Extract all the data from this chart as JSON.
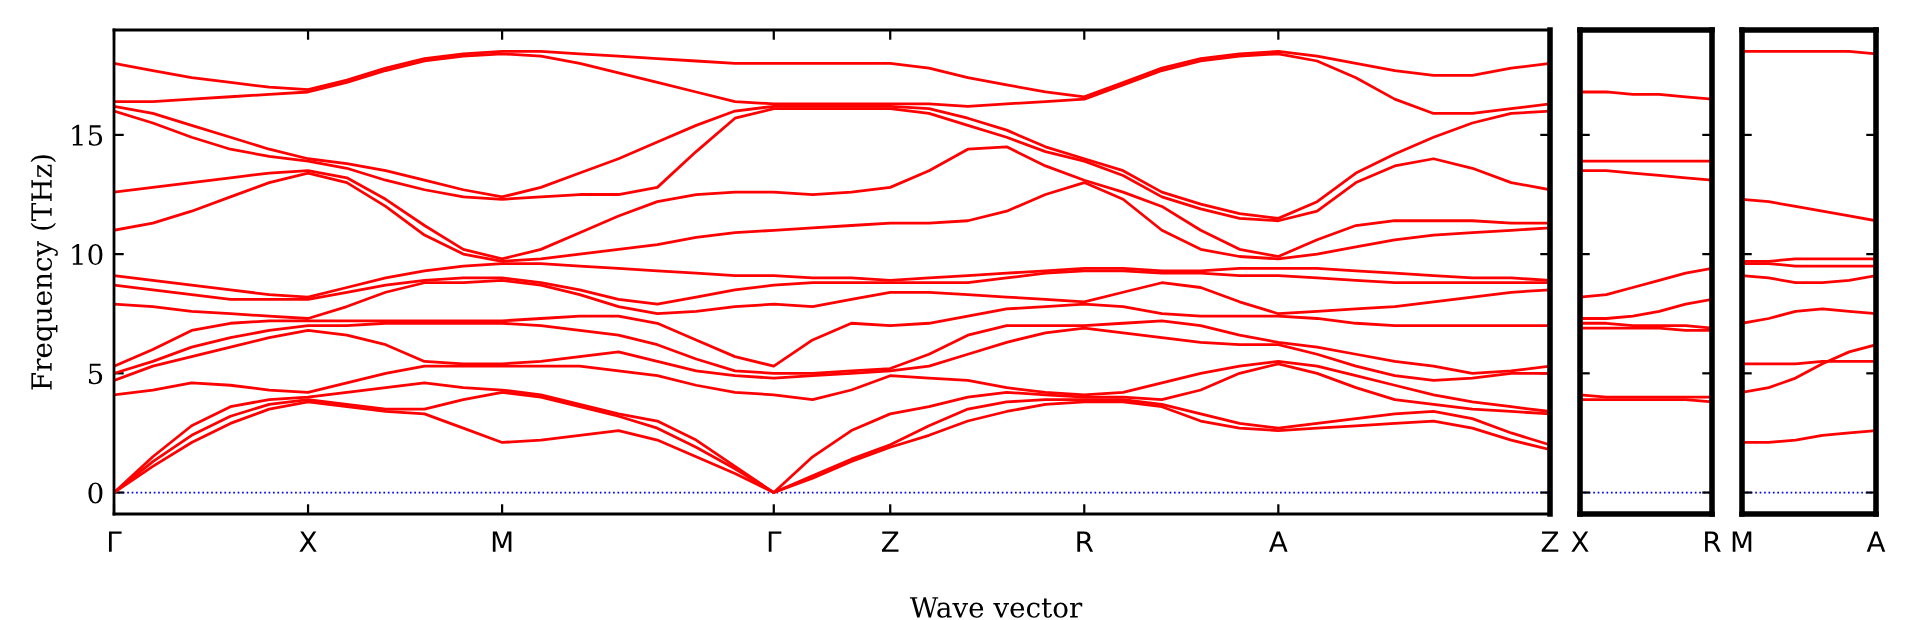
{
  "chart_data": [
    {
      "type": "line",
      "ylabel": "Frequency (THz)",
      "xlabel": "Wave vector",
      "tick_labels": "xy",
      "marker": "none",
      "line_style": "solid",
      "categories": [
        "Γ",
        null,
        null,
        null,
        null,
        "X",
        null,
        null,
        null,
        null,
        "M",
        null,
        null,
        null,
        null,
        null,
        null,
        "Γ",
        null,
        null,
        "Z",
        null,
        null,
        null,
        null,
        "R",
        null,
        null,
        null,
        null,
        "A",
        null,
        null,
        null,
        null,
        null,
        null,
        "Z"
      ],
      "ylim": [
        -0.9,
        19.4
      ],
      "yticks": [
        0,
        5,
        10,
        15
      ],
      "ref_lines": [
        {
          "axis": "y",
          "value": 0,
          "color": "#0000ff",
          "line_style": "dotted"
        }
      ],
      "series": [
        {
          "color": "#ff0000",
          "values": [
            0,
            1.1,
            2.1,
            2.9,
            3.5,
            3.8,
            3.6,
            3.4,
            3.3,
            2.7,
            2.1,
            2.2,
            2.4,
            2.6,
            2.2,
            1.5,
            0.8,
            0,
            0.6,
            1.3,
            1.9,
            2.4,
            3.0,
            3.4,
            3.7,
            3.8,
            3.8,
            3.6,
            3.0,
            2.7,
            2.6,
            2.7,
            2.8,
            2.9,
            3.0,
            2.7,
            2.2,
            1.8
          ]
        },
        {
          "color": "#ff0000",
          "values": [
            0,
            1.3,
            2.4,
            3.2,
            3.7,
            3.9,
            3.7,
            3.5,
            3.5,
            3.9,
            4.2,
            4.0,
            3.6,
            3.2,
            2.7,
            1.9,
            1.0,
            0,
            0.7,
            1.4,
            2.0,
            2.8,
            3.5,
            3.8,
            3.9,
            3.9,
            3.9,
            3.7,
            3.3,
            2.9,
            2.7,
            2.9,
            3.1,
            3.3,
            3.4,
            3.1,
            2.5,
            2.0
          ]
        },
        {
          "color": "#ff0000",
          "values": [
            0,
            1.5,
            2.8,
            3.6,
            3.9,
            4.0,
            4.2,
            4.4,
            4.6,
            4.4,
            4.3,
            4.1,
            3.7,
            3.3,
            3.0,
            2.2,
            1.1,
            0,
            1.5,
            2.6,
            3.3,
            3.6,
            4.0,
            4.2,
            4.1,
            4.0,
            4.0,
            3.9,
            4.3,
            5.0,
            5.4,
            5.0,
            4.4,
            3.9,
            3.7,
            3.5,
            3.4,
            3.3
          ]
        },
        {
          "color": "#ff0000",
          "values": [
            4.1,
            4.3,
            4.6,
            4.5,
            4.3,
            4.2,
            4.6,
            5.0,
            5.3,
            5.3,
            5.3,
            5.3,
            5.3,
            5.1,
            4.9,
            4.5,
            4.2,
            4.1,
            3.9,
            4.3,
            4.9,
            4.8,
            4.7,
            4.4,
            4.2,
            4.1,
            4.2,
            4.6,
            5.0,
            5.3,
            5.5,
            5.3,
            4.9,
            4.5,
            4.1,
            3.8,
            3.6,
            3.4
          ]
        },
        {
          "color": "#ff0000",
          "values": [
            4.7,
            5.3,
            5.7,
            6.1,
            6.5,
            6.8,
            6.6,
            6.2,
            5.5,
            5.4,
            5.4,
            5.5,
            5.7,
            5.9,
            5.5,
            5.1,
            4.9,
            4.8,
            4.9,
            5.0,
            5.1,
            5.3,
            5.8,
            6.3,
            6.7,
            6.9,
            6.7,
            6.5,
            6.3,
            6.2,
            6.2,
            5.8,
            5.3,
            4.9,
            4.7,
            4.8,
            5.0,
            5.0
          ]
        },
        {
          "color": "#ff0000",
          "values": [
            5.0,
            5.5,
            6.1,
            6.5,
            6.8,
            7.0,
            7.0,
            7.1,
            7.1,
            7.1,
            7.1,
            7.0,
            6.8,
            6.6,
            6.2,
            5.6,
            5.1,
            5.0,
            5.0,
            5.1,
            5.2,
            5.8,
            6.6,
            7.0,
            7.0,
            7.0,
            7.1,
            7.2,
            7.0,
            6.6,
            6.3,
            6.1,
            5.8,
            5.5,
            5.3,
            5.0,
            5.1,
            5.3
          ]
        },
        {
          "color": "#ff0000",
          "values": [
            5.3,
            6.0,
            6.8,
            7.1,
            7.2,
            7.2,
            7.2,
            7.2,
            7.2,
            7.2,
            7.2,
            7.3,
            7.4,
            7.4,
            7.1,
            6.4,
            5.7,
            5.3,
            6.4,
            7.1,
            7.0,
            7.1,
            7.4,
            7.7,
            7.8,
            7.9,
            7.8,
            7.5,
            7.4,
            7.4,
            7.4,
            7.3,
            7.1,
            7.0,
            7.0,
            7.0,
            7.0,
            7.0
          ]
        },
        {
          "color": "#ff0000",
          "values": [
            7.9,
            7.8,
            7.6,
            7.5,
            7.4,
            7.3,
            7.8,
            8.4,
            8.8,
            8.8,
            8.9,
            8.7,
            8.3,
            7.8,
            7.5,
            7.6,
            7.8,
            7.9,
            7.8,
            8.1,
            8.4,
            8.4,
            8.3,
            8.2,
            8.1,
            8.0,
            8.4,
            8.8,
            8.6,
            8.0,
            7.5,
            7.6,
            7.7,
            7.8,
            8.0,
            8.2,
            8.4,
            8.5
          ]
        },
        {
          "color": "#ff0000",
          "values": [
            8.7,
            8.5,
            8.3,
            8.1,
            8.1,
            8.1,
            8.4,
            8.7,
            8.9,
            9.0,
            9.0,
            8.8,
            8.5,
            8.1,
            7.9,
            8.2,
            8.5,
            8.7,
            8.8,
            8.8,
            8.8,
            8.8,
            8.8,
            9.0,
            9.2,
            9.3,
            9.3,
            9.2,
            9.2,
            9.1,
            9.1,
            9.0,
            8.9,
            8.8,
            8.8,
            8.8,
            8.8,
            8.8
          ]
        },
        {
          "color": "#ff0000",
          "values": [
            9.1,
            8.9,
            8.7,
            8.5,
            8.3,
            8.2,
            8.6,
            9.0,
            9.3,
            9.5,
            9.6,
            9.6,
            9.5,
            9.4,
            9.3,
            9.2,
            9.1,
            9.1,
            9.0,
            9.0,
            8.9,
            9.0,
            9.1,
            9.2,
            9.3,
            9.4,
            9.4,
            9.3,
            9.3,
            9.4,
            9.4,
            9.4,
            9.3,
            9.2,
            9.1,
            9.0,
            9.0,
            8.9
          ]
        },
        {
          "color": "#ff0000",
          "values": [
            11.0,
            11.3,
            11.8,
            12.4,
            13.0,
            13.4,
            13.0,
            12.0,
            10.8,
            10.0,
            9.7,
            9.8,
            10.0,
            10.2,
            10.4,
            10.7,
            10.9,
            11.0,
            11.1,
            11.2,
            11.3,
            11.3,
            11.4,
            11.8,
            12.5,
            13.0,
            12.3,
            11.0,
            10.2,
            9.9,
            9.8,
            10.0,
            10.3,
            10.6,
            10.8,
            10.9,
            11.0,
            11.1
          ]
        },
        {
          "color": "#ff0000",
          "values": [
            12.6,
            12.8,
            13.0,
            13.2,
            13.4,
            13.5,
            13.2,
            12.3,
            11.2,
            10.2,
            9.8,
            10.2,
            10.9,
            11.6,
            12.2,
            12.5,
            12.6,
            12.6,
            12.5,
            12.6,
            12.8,
            13.5,
            14.4,
            14.5,
            13.7,
            13.1,
            12.6,
            12.0,
            11.0,
            10.2,
            9.9,
            10.6,
            11.2,
            11.4,
            11.4,
            11.4,
            11.3,
            11.3
          ]
        },
        {
          "color": "#ff0000",
          "values": [
            16.0,
            15.5,
            14.9,
            14.4,
            14.1,
            13.9,
            13.6,
            13.1,
            12.7,
            12.4,
            12.3,
            12.4,
            12.5,
            12.5,
            12.8,
            14.3,
            15.7,
            16.1,
            16.1,
            16.1,
            16.1,
            15.9,
            15.4,
            14.9,
            14.3,
            13.9,
            13.3,
            12.4,
            11.9,
            11.5,
            11.4,
            11.8,
            13.0,
            13.7,
            14.0,
            13.6,
            13.0,
            12.7
          ]
        },
        {
          "color": "#ff0000",
          "values": [
            16.2,
            15.9,
            15.4,
            14.9,
            14.4,
            14.0,
            13.8,
            13.5,
            13.1,
            12.7,
            12.4,
            12.8,
            13.4,
            14.0,
            14.7,
            15.4,
            16.0,
            16.2,
            16.2,
            16.2,
            16.2,
            16.1,
            15.7,
            15.2,
            14.5,
            14.0,
            13.5,
            12.6,
            12.1,
            11.7,
            11.5,
            12.2,
            13.4,
            14.2,
            14.9,
            15.5,
            15.9,
            16.0
          ]
        },
        {
          "color": "#ff0000",
          "values": [
            16.4,
            16.4,
            16.5,
            16.6,
            16.7,
            16.8,
            17.2,
            17.7,
            18.1,
            18.3,
            18.4,
            18.3,
            18.0,
            17.6,
            17.2,
            16.8,
            16.4,
            16.3,
            16.3,
            16.3,
            16.3,
            16.3,
            16.2,
            16.3,
            16.4,
            16.5,
            17.1,
            17.7,
            18.1,
            18.3,
            18.4,
            18.1,
            17.4,
            16.5,
            15.9,
            15.9,
            16.1,
            16.3
          ]
        },
        {
          "color": "#ff0000",
          "values": [
            18.0,
            17.7,
            17.4,
            17.2,
            17.0,
            16.9,
            17.3,
            17.8,
            18.2,
            18.4,
            18.5,
            18.5,
            18.4,
            18.3,
            18.2,
            18.1,
            18.0,
            18.0,
            18.0,
            18.0,
            18.0,
            17.8,
            17.4,
            17.1,
            16.8,
            16.6,
            17.2,
            17.8,
            18.2,
            18.4,
            18.5,
            18.3,
            18.0,
            17.7,
            17.5,
            17.5,
            17.8,
            18.0
          ]
        }
      ]
    },
    {
      "type": "line",
      "tick_labels": "x",
      "marker": "none",
      "line_style": "solid",
      "categories": [
        "X",
        null,
        null,
        null,
        null,
        "R"
      ],
      "ylim": [
        -0.9,
        19.4
      ],
      "yticks": [
        0,
        5,
        10,
        15
      ],
      "ref_lines": [
        {
          "axis": "y",
          "value": 0,
          "color": "#0000ff",
          "line_style": "dotted"
        }
      ],
      "series": [
        {
          "color": "#ff0000",
          "values": [
            16.8,
            16.8,
            16.7,
            16.7,
            16.6,
            16.5
          ]
        },
        {
          "color": "#ff0000",
          "values": [
            13.9,
            13.9,
            13.9,
            13.9,
            13.9,
            13.9
          ]
        },
        {
          "color": "#ff0000",
          "values": [
            13.5,
            13.5,
            13.4,
            13.3,
            13.2,
            13.1
          ]
        },
        {
          "color": "#ff0000",
          "values": [
            8.2,
            8.3,
            8.6,
            8.9,
            9.2,
            9.4
          ]
        },
        {
          "color": "#ff0000",
          "values": [
            7.3,
            7.3,
            7.4,
            7.6,
            7.9,
            8.1
          ]
        },
        {
          "color": "#ff0000",
          "values": [
            7.1,
            7.1,
            7.0,
            7.0,
            7.0,
            6.9
          ]
        },
        {
          "color": "#ff0000",
          "values": [
            6.9,
            6.9,
            6.9,
            6.9,
            6.8,
            6.8
          ]
        },
        {
          "color": "#ff0000",
          "values": [
            4.1,
            4.0,
            4.0,
            4.0,
            4.0,
            4.0
          ]
        },
        {
          "color": "#ff0000",
          "values": [
            3.9,
            3.9,
            3.9,
            3.9,
            3.9,
            3.8
          ]
        }
      ]
    },
    {
      "type": "line",
      "tick_labels": "x",
      "marker": "none",
      "line_style": "solid",
      "categories": [
        "M",
        null,
        null,
        null,
        null,
        "A"
      ],
      "ylim": [
        -0.9,
        19.4
      ],
      "yticks": [
        0,
        5,
        10,
        15
      ],
      "ref_lines": [
        {
          "axis": "y",
          "value": 0,
          "color": "#0000ff",
          "line_style": "dotted"
        }
      ],
      "series": [
        {
          "color": "#ff0000",
          "values": [
            18.5,
            18.5,
            18.5,
            18.5,
            18.5,
            18.4
          ]
        },
        {
          "color": "#ff0000",
          "values": [
            12.3,
            12.2,
            12.0,
            11.8,
            11.6,
            11.4
          ]
        },
        {
          "color": "#ff0000",
          "values": [
            9.7,
            9.7,
            9.8,
            9.8,
            9.8,
            9.8
          ]
        },
        {
          "color": "#ff0000",
          "values": [
            9.6,
            9.6,
            9.5,
            9.5,
            9.5,
            9.5
          ]
        },
        {
          "color": "#ff0000",
          "values": [
            9.1,
            9.0,
            8.8,
            8.8,
            8.9,
            9.1
          ]
        },
        {
          "color": "#ff0000",
          "values": [
            7.1,
            7.3,
            7.6,
            7.7,
            7.6,
            7.5
          ]
        },
        {
          "color": "#ff0000",
          "values": [
            5.4,
            5.4,
            5.4,
            5.5,
            5.5,
            5.5
          ]
        },
        {
          "color": "#ff0000",
          "values": [
            4.2,
            4.4,
            4.8,
            5.4,
            5.9,
            6.2
          ]
        },
        {
          "color": "#ff0000",
          "values": [
            2.1,
            2.1,
            2.2,
            2.4,
            2.5,
            2.6
          ]
        }
      ]
    }
  ]
}
